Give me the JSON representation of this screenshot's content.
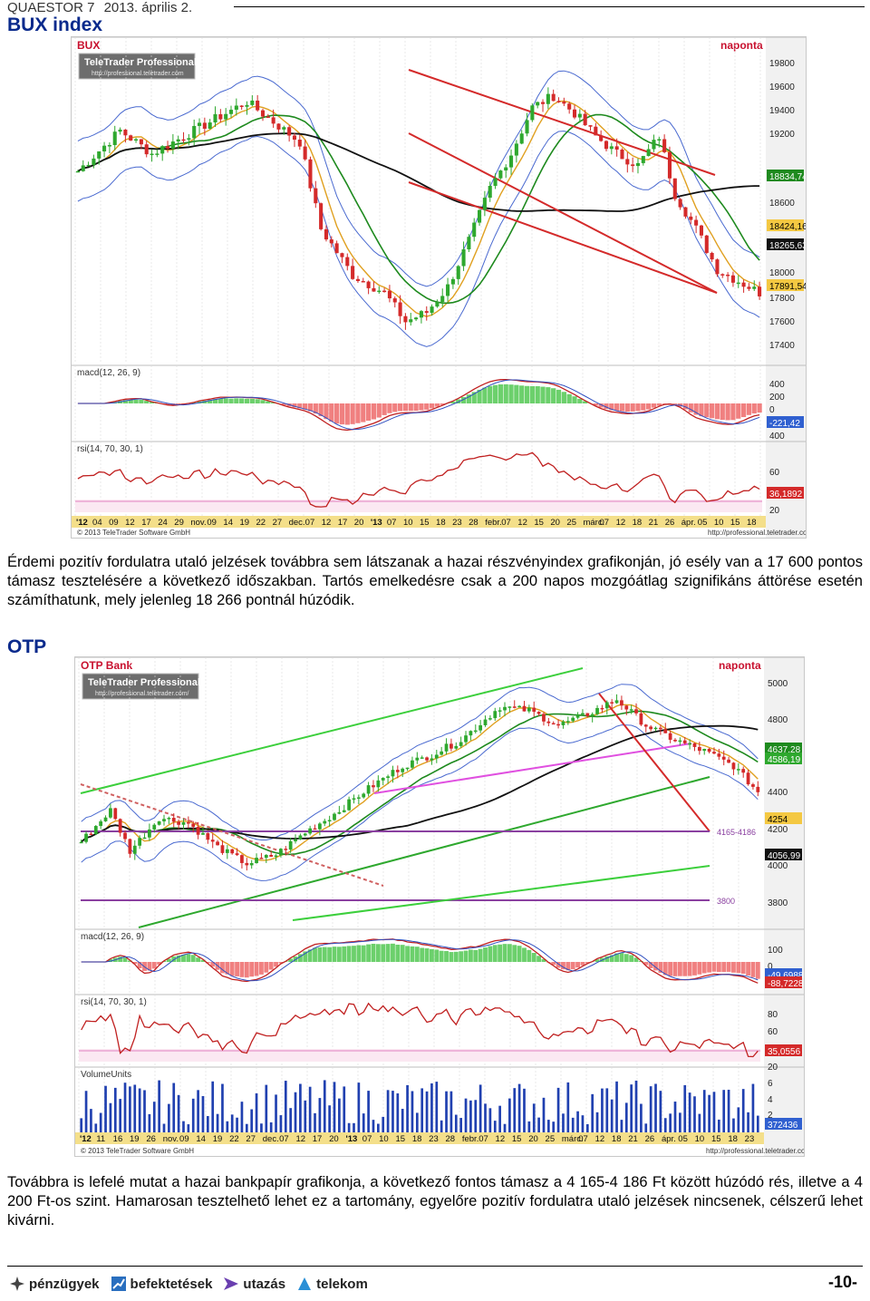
{
  "header": {
    "company": "QUAESTOR 7",
    "date": "2013. április 2."
  },
  "bux": {
    "title": "BUX index",
    "chart": {
      "symbol": "BUX",
      "period": "naponta",
      "brand": "TeleTrader Professional",
      "brand_url": "http://professional.teletrader.com",
      "copyright": "© 2013 TeleTrader Software GmbH",
      "copyright_url": "http://professional.teletrader.com/",
      "price_ticks": [
        "19800",
        "19600",
        "19400",
        "19200",
        "18834,74",
        "18600",
        "18424,16",
        "18265,63",
        "18000",
        "17891,54",
        "17800",
        "17600",
        "17400"
      ],
      "macd_label": "macd(12, 26, 9)",
      "macd_ticks": [
        "400",
        "200",
        "0",
        "-221,42",
        "400"
      ],
      "rsi_label": "rsi(14, 70, 30, 1)",
      "rsi_ticks": [
        "60",
        "36,1892",
        "20"
      ],
      "date_ticks": [
        "'12",
        "04",
        "09",
        "12",
        "17",
        "24",
        "29",
        "nov.",
        "09",
        "14",
        "19",
        "22",
        "27",
        "dec.",
        "07",
        "12",
        "17",
        "20",
        "'13",
        "07",
        "10",
        "15",
        "18",
        "23",
        "28",
        "febr.",
        "07",
        "12",
        "15",
        "20",
        "25",
        "márc.",
        "07",
        "12",
        "18",
        "21",
        "26",
        "ápr.",
        "05",
        "10",
        "15",
        "18"
      ]
    },
    "paragraph": "Érdemi pozitív fordulatra utaló jelzések továbbra sem látszanak a hazai részvényindex grafikonján, jó esély van a 17 600 pontos támasz tesztelésére a következő időszakban. Tartós emelkedésre csak a 200 napos mozgóátlag szignifikáns áttörése esetén számíthatunk, mely jelenleg 18 266 pontnál húzódik."
  },
  "otp": {
    "title": "OTP",
    "chart": {
      "symbol": "OTP Bank",
      "period": "naponta",
      "brand": "TeleTrader Professional",
      "brand_url": "http://professional.teletrader.com/",
      "copyright": "© 2013 TeleTrader Software GmbH",
      "copyright_url": "http://professional.teletrader.com/",
      "price_ticks": [
        "5000",
        "4800",
        "4637,28",
        "4586,19",
        "4400",
        "4254",
        "4200",
        "4056,99",
        "4000",
        "3800"
      ],
      "zone_label": "4165-4186",
      "level_label": "3800",
      "macd_label": "macd(12, 26, 9)",
      "macd_ticks": [
        "100",
        "0",
        "-49,6988",
        "-88,7228"
      ],
      "rsi_label": "rsi(14, 70, 30, 1)",
      "rsi_ticks": [
        "80",
        "60",
        "35,0556",
        "20"
      ],
      "volume_label": "VolumeUnits",
      "volume_ticks": [
        "6",
        "4",
        "2",
        "372436"
      ],
      "date_ticks": [
        "'12",
        "11",
        "16",
        "19",
        "26",
        "nov.",
        "09",
        "14",
        "19",
        "22",
        "27",
        "dec.",
        "07",
        "12",
        "17",
        "20",
        "'13",
        "07",
        "10",
        "15",
        "18",
        "23",
        "28",
        "febr.",
        "07",
        "12",
        "15",
        "20",
        "25",
        "márc.",
        "07",
        "12",
        "18",
        "21",
        "26",
        "ápr.",
        "05",
        "10",
        "15",
        "18",
        "23"
      ]
    },
    "paragraph": "Továbbra is lefelé mutat a hazai bankpapír grafikonja, a következő fontos támasz a 4 165-4 186 Ft között húzódó rés, illetve a 4 200 Ft-os szint. Hamarosan tesztelhető lehet ez a tartomány, egyelőre pozitív fordulatra utaló jelzések nincsenek, célszerű lehet kivárni."
  },
  "footer": {
    "nav": [
      "pénzügyek",
      "befektetések",
      "utazás",
      "telekom"
    ],
    "page": "-10-"
  },
  "colors": {
    "title_blue": "#0a2a8c",
    "red": "#d42a2a",
    "green": "#2ea82e"
  }
}
